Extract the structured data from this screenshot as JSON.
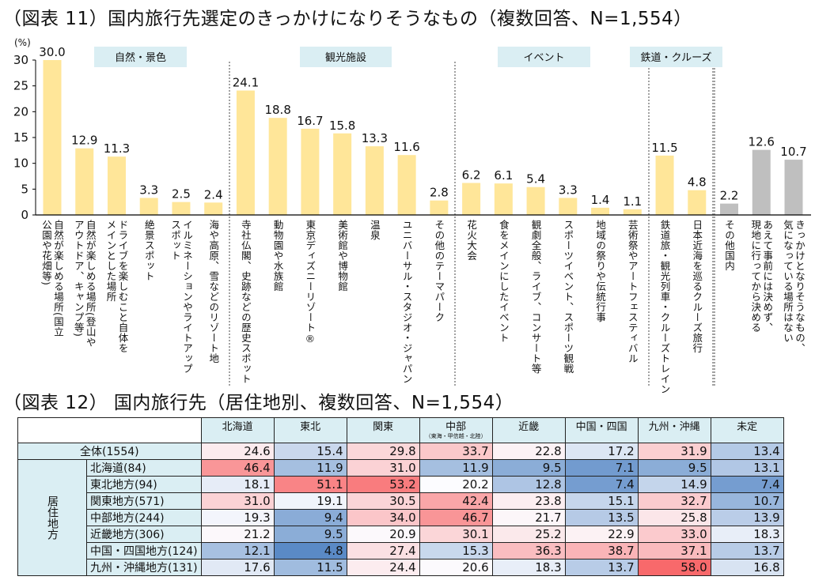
{
  "chart_title": "（図表 11）国内旅行先選定のきっかけになりそうなもの（複数回答、N=1,554）",
  "table_title": "（図表 12） 国内旅行先（居住地別、複数回答、N=1,554）",
  "chart_data": {
    "type": "bar",
    "ylabel": "(%)",
    "ylim": [
      0,
      30
    ],
    "yticks": [
      0,
      5,
      10,
      15,
      20,
      25,
      30
    ],
    "grid": false,
    "colors": {
      "main": "#FFE699",
      "other": "#BFBFBF",
      "group_box": "#DAEEF3"
    },
    "groups": [
      {
        "label": "自然・景色",
        "start": 0,
        "end": 5
      },
      {
        "label": "観光施設",
        "start": 6,
        "end": 12
      },
      {
        "label": "イベント",
        "start": 13,
        "end": 18
      },
      {
        "label": "鉄道・クルーズ",
        "start": 19,
        "end": 20
      }
    ],
    "categories": [
      "自然が楽しめる場所(国立\n公園や花畑等)",
      "自然が楽しめる場所(登山や\nアウトドア、キャンプ等)",
      "ドライブを楽しむこと自体を\nメインとした場所",
      "絶景スポット",
      "イルミネーションやライトアップ\nスポット",
      "海や高原、雪などのリゾート地",
      "寺社仏閣、史跡などの歴史スポット",
      "動物園や水族館",
      "東京ディズニーリゾート®",
      "美術館や博物館",
      "温泉",
      "ユニバーサル・スタジオ・ジャパン",
      "その他のテーマパーク",
      "花火大会",
      "食をメインにしたイベント",
      "観劇全般、ライブ、コンサート等",
      "スポーツイベント、スポーツ観戦",
      "地域の祭りや伝統行事",
      "芸術祭やアートフェスティバル",
      "鉄道旅・観光列車・クルーズトレイン",
      "日本近海を巡るクルーズ旅行",
      "その他国内",
      "あえて事前には決めず、\n現地に行ってから決める",
      "きっかけとなりそうなもの、\n気になっている場所はない"
    ],
    "values": [
      30.0,
      12.9,
      11.3,
      3.3,
      2.5,
      2.4,
      24.1,
      18.8,
      16.7,
      15.8,
      13.3,
      11.6,
      2.8,
      6.2,
      6.1,
      5.4,
      3.3,
      1.4,
      1.1,
      11.5,
      4.8,
      2.2,
      12.6,
      10.7
    ],
    "value_labels": [
      "30.0",
      "12.9",
      "11.3",
      "3.3",
      "2.5",
      "2.4",
      "24.1",
      "18.8",
      "16.7",
      "15.8",
      "13.3",
      "11.6",
      "2.8",
      "6.2",
      "6.1",
      "5.4",
      "3.3",
      "1.4",
      "1.1",
      "11.5",
      "4.8",
      "2.2",
      "12.6",
      "10.7"
    ],
    "bar_colors": [
      "main",
      "main",
      "main",
      "main",
      "main",
      "main",
      "main",
      "main",
      "main",
      "main",
      "main",
      "main",
      "main",
      "main",
      "main",
      "main",
      "main",
      "main",
      "main",
      "main",
      "main",
      "other",
      "other",
      "other"
    ]
  },
  "table": {
    "columns": [
      {
        "label": "北海道",
        "sub": ""
      },
      {
        "label": "東北",
        "sub": ""
      },
      {
        "label": "関東",
        "sub": ""
      },
      {
        "label": "中部",
        "sub": "（東海・甲信越・北陸）"
      },
      {
        "label": "近畿",
        "sub": ""
      },
      {
        "label": "中国・四国",
        "sub": ""
      },
      {
        "label": "九州・沖縄",
        "sub": ""
      },
      {
        "label": "未定",
        "sub": ""
      }
    ],
    "group_label": "居住地方",
    "total_row": {
      "label": "全体(1554)",
      "values": [
        "24.6",
        "15.4",
        "29.8",
        "33.7",
        "22.8",
        "17.2",
        "31.9",
        "13.4"
      ]
    },
    "rows": [
      {
        "label": "北海道(84)",
        "values": [
          "46.4",
          "11.9",
          "31.0",
          "11.9",
          "9.5",
          "7.1",
          "9.5",
          "13.1"
        ]
      },
      {
        "label": "東北地方(94)",
        "values": [
          "18.1",
          "51.1",
          "53.2",
          "20.2",
          "12.8",
          "7.4",
          "14.9",
          "7.4"
        ]
      },
      {
        "label": "関東地方(571)",
        "values": [
          "31.0",
          "19.1",
          "30.5",
          "42.4",
          "23.8",
          "15.1",
          "32.7",
          "10.7"
        ]
      },
      {
        "label": "中部地方(244)",
        "values": [
          "19.3",
          "9.4",
          "34.0",
          "46.7",
          "21.7",
          "13.5",
          "25.8",
          "13.9"
        ]
      },
      {
        "label": "近畿地方(306)",
        "values": [
          "21.2",
          "9.5",
          "20.9",
          "30.1",
          "25.2",
          "22.9",
          "33.0",
          "18.3"
        ]
      },
      {
        "label": "中国・四国地方(124)",
        "values": [
          "12.1",
          "4.8",
          "27.4",
          "15.3",
          "36.3",
          "38.7",
          "37.1",
          "13.7"
        ]
      },
      {
        "label": "九州・沖縄地方(131)",
        "values": [
          "17.6",
          "11.5",
          "24.4",
          "20.6",
          "18.3",
          "13.7",
          "58.0",
          "16.8"
        ]
      }
    ],
    "color_scale": {
      "low": "#5A8AC6",
      "mid": "#FCFCFF",
      "high": "#F8696B"
    }
  }
}
